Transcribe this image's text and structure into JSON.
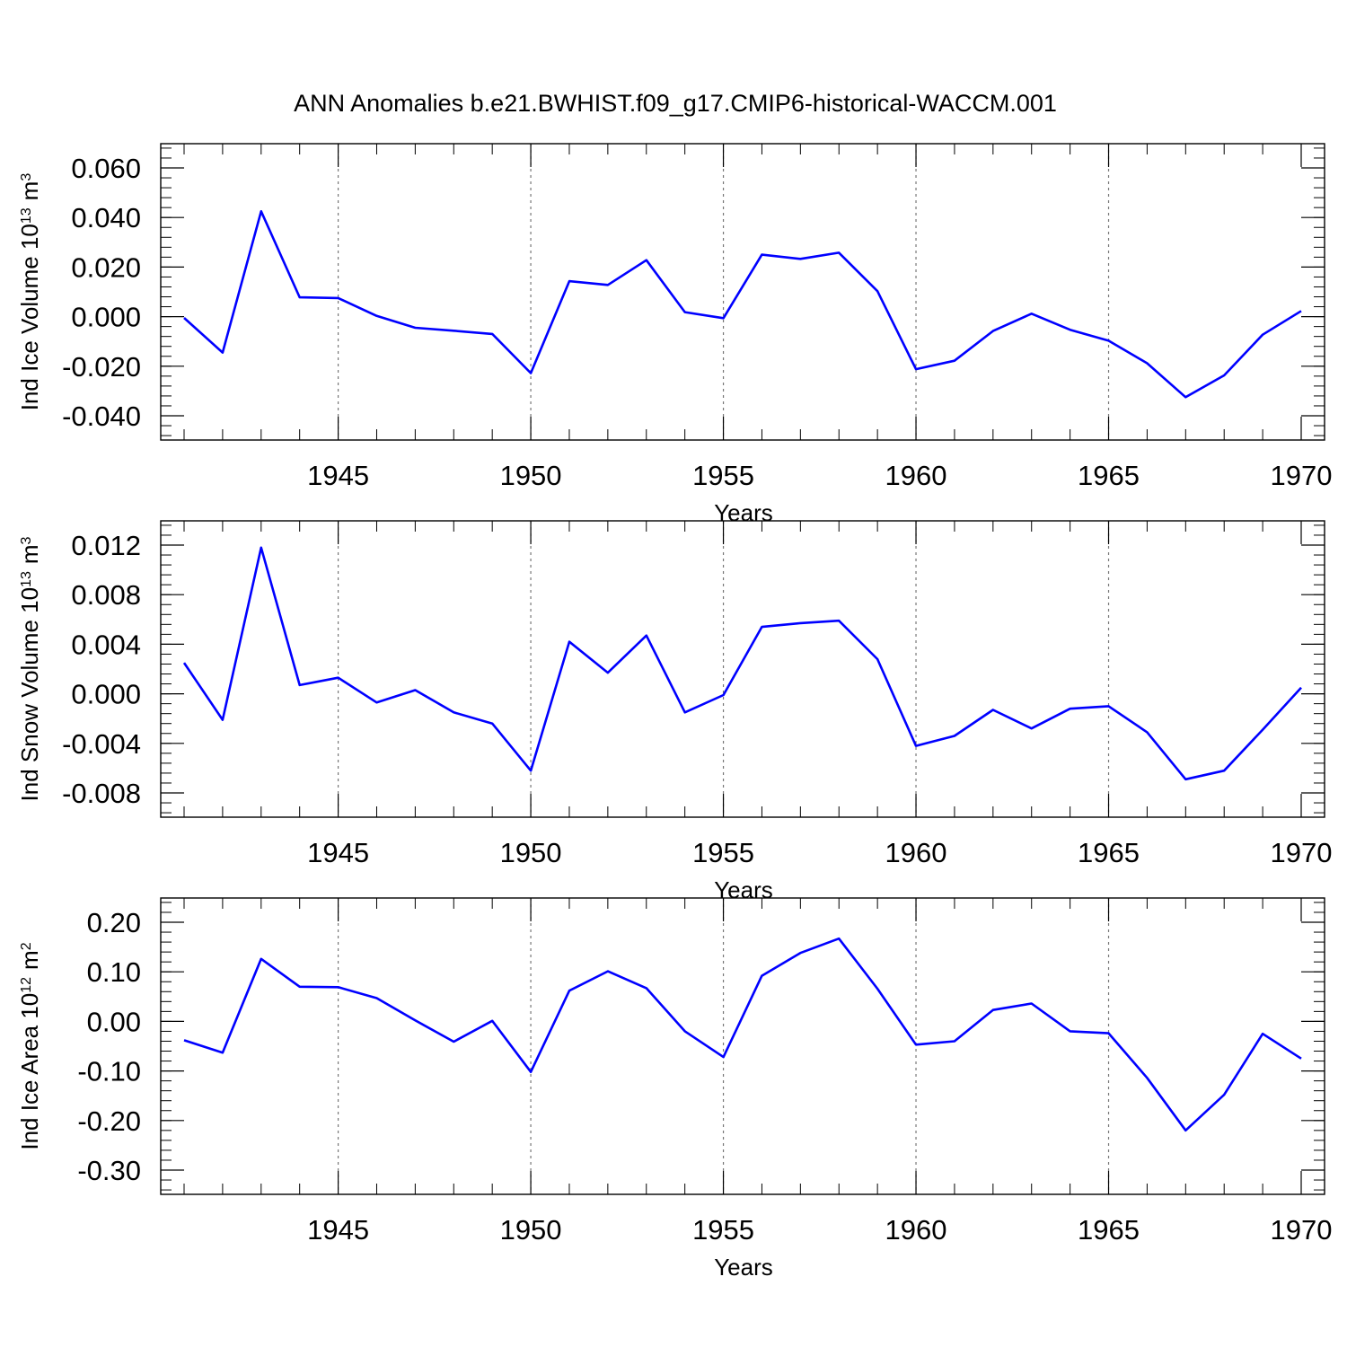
{
  "figure": {
    "title": "ANN Anomalies b.e21.BWHIST.f09_g17.CMIP6-historical-WACCM.001",
    "line_color": "#0000ff"
  },
  "chart_data": [
    {
      "type": "line",
      "xlabel": "Years",
      "ylabel_main": "Ind Ice Volume 10",
      "ylabel_exp": "13",
      "ylabel_unit": "m",
      "ylabel_unit_exp": "3",
      "xlim": [
        1941,
        1970
      ],
      "ylim": [
        -0.04,
        0.06
      ],
      "x_ticks": [
        1945,
        1950,
        1955,
        1960,
        1965,
        1970
      ],
      "x_tick_labels": [
        "1945",
        "1950",
        "1955",
        "1960",
        "1965",
        "1970"
      ],
      "y_ticks": [
        0.06,
        0.04,
        0.02,
        0.0,
        -0.02,
        -0.04
      ],
      "y_tick_labels": [
        "0.060",
        "0.040",
        "0.020",
        "0.000",
        "-0.020",
        "-0.040"
      ],
      "grid": "vertical dashed at major x ticks",
      "series": [
        {
          "x": [
            1941,
            1942,
            1943,
            1944,
            1945,
            1946,
            1947,
            1948,
            1949,
            1950,
            1951,
            1952,
            1953,
            1954,
            1955,
            1956,
            1957,
            1958,
            1959,
            1960,
            1961,
            1962,
            1963,
            1964,
            1965,
            1966,
            1967,
            1968,
            1969,
            1970
          ],
          "values": [
            -0.0005,
            -0.0145,
            0.0425,
            0.0078,
            0.0075,
            0.0003,
            -0.0045,
            -0.0057,
            -0.007,
            -0.0228,
            0.0143,
            0.0128,
            0.0228,
            0.0018,
            -0.0006,
            0.025,
            0.0233,
            0.0258,
            0.0103,
            -0.0212,
            -0.0178,
            -0.0058,
            0.0012,
            -0.0053,
            -0.0097,
            -0.0188,
            -0.0325,
            -0.0237,
            -0.0073,
            0.0023
          ]
        }
      ]
    },
    {
      "type": "line",
      "xlabel": "Years",
      "ylabel_main": "Ind Snow Volume 10",
      "ylabel_exp": "13",
      "ylabel_unit": "m",
      "ylabel_unit_exp": "3",
      "xlim": [
        1941,
        1970
      ],
      "ylim": [
        -0.009,
        0.0123
      ],
      "x_ticks": [
        1945,
        1950,
        1955,
        1960,
        1965,
        1970
      ],
      "x_tick_labels": [
        "1945",
        "1950",
        "1955",
        "1960",
        "1965",
        "1970"
      ],
      "y_ticks": [
        0.012,
        0.008,
        0.004,
        0.0,
        -0.004,
        -0.008
      ],
      "y_tick_labels": [
        "0.012",
        "0.008",
        "0.004",
        "0.000",
        "-0.004",
        "-0.008"
      ],
      "grid": "vertical dashed at major x ticks",
      "series": [
        {
          "x": [
            1941,
            1942,
            1943,
            1944,
            1945,
            1946,
            1947,
            1948,
            1949,
            1950,
            1951,
            1952,
            1953,
            1954,
            1955,
            1956,
            1957,
            1958,
            1959,
            1960,
            1961,
            1962,
            1963,
            1964,
            1965,
            1966,
            1967,
            1968,
            1969,
            1970
          ],
          "values": [
            0.0025,
            -0.0021,
            0.0118,
            0.0007,
            0.0013,
            -0.0007,
            0.0003,
            -0.0015,
            -0.0024,
            -0.0062,
            0.0042,
            0.0017,
            0.0047,
            -0.0015,
            -0.0001,
            0.0054,
            0.0057,
            0.0059,
            0.0028,
            -0.0042,
            -0.0034,
            -0.0013,
            -0.0028,
            -0.0012,
            -0.001,
            -0.0031,
            -0.0069,
            -0.0062,
            -0.0029,
            0.0005
          ]
        }
      ]
    },
    {
      "type": "line",
      "xlabel": "Years",
      "ylabel_main": "Ind Ice Area 10",
      "ylabel_exp": "12",
      "ylabel_unit": "m",
      "ylabel_unit_exp": "2",
      "xlim": [
        1941,
        1970
      ],
      "ylim": [
        -0.3,
        0.2
      ],
      "x_ticks": [
        1945,
        1950,
        1955,
        1960,
        1965,
        1970
      ],
      "x_tick_labels": [
        "1945",
        "1950",
        "1955",
        "1960",
        "1965",
        "1970"
      ],
      "y_ticks": [
        0.2,
        0.1,
        0.0,
        -0.1,
        -0.2,
        -0.3
      ],
      "y_tick_labels": [
        "0.20",
        "0.10",
        "0.00",
        "-0.10",
        "-0.20",
        "-0.30"
      ],
      "grid": "vertical dashed at major x ticks",
      "series": [
        {
          "x": [
            1941,
            1942,
            1943,
            1944,
            1945,
            1946,
            1947,
            1948,
            1949,
            1950,
            1951,
            1952,
            1953,
            1954,
            1955,
            1956,
            1957,
            1958,
            1959,
            1960,
            1961,
            1962,
            1963,
            1964,
            1965,
            1966,
            1967,
            1968,
            1969,
            1970
          ],
          "values": [
            -0.038,
            -0.063,
            0.126,
            0.07,
            0.069,
            0.047,
            0.002,
            -0.041,
            0.001,
            -0.102,
            0.062,
            0.101,
            0.067,
            -0.02,
            -0.072,
            0.092,
            0.138,
            0.167,
            0.066,
            -0.047,
            -0.04,
            0.023,
            0.036,
            -0.02,
            -0.024,
            -0.114,
            -0.22,
            -0.148,
            -0.025,
            -0.075
          ]
        }
      ]
    }
  ]
}
